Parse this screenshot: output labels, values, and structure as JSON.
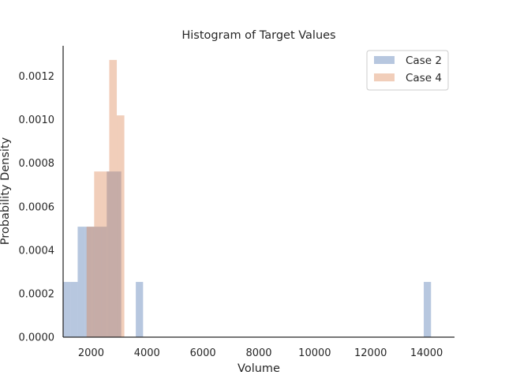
{
  "chart_data": {
    "type": "bar",
    "title": "Histogram of Target Values",
    "xlabel": "Volume",
    "ylabel": "Probability Density",
    "xlim": [
      1000,
      15000
    ],
    "ylim": [
      0,
      0.00134
    ],
    "xticks": [
      2000,
      4000,
      6000,
      8000,
      10000,
      12000,
      14000
    ],
    "yticks": [
      0.0,
      0.0002,
      0.0004,
      0.0006,
      0.0008,
      0.001,
      0.0012
    ],
    "ytick_labels": [
      "0.0000",
      "0.0002",
      "0.0004",
      "0.0006",
      "0.0008",
      "0.0010",
      "0.0012"
    ],
    "grid": false,
    "legend": "top-right",
    "series": [
      {
        "name": "Case 2",
        "color": "#4c72b0",
        "bins": [
          {
            "x0": 1000,
            "x1": 1260,
            "density": 0.000254
          },
          {
            "x0": 1260,
            "x1": 1520,
            "density": 0.000254
          },
          {
            "x0": 1520,
            "x1": 1780,
            "density": 0.000508
          },
          {
            "x0": 1780,
            "x1": 2040,
            "density": 0.000508
          },
          {
            "x0": 2040,
            "x1": 2300,
            "density": 0.000508
          },
          {
            "x0": 2300,
            "x1": 2560,
            "density": 0.000508
          },
          {
            "x0": 2560,
            "x1": 2820,
            "density": 0.000762
          },
          {
            "x0": 2820,
            "x1": 3080,
            "density": 0.000762
          },
          {
            "x0": 3080,
            "x1": 3340,
            "density": 0
          },
          {
            "x0": 3340,
            "x1": 3600,
            "density": 0
          },
          {
            "x0": 3600,
            "x1": 3860,
            "density": 0.000254
          },
          {
            "x0": 13900,
            "x1": 14160,
            "density": 0.000254
          }
        ]
      },
      {
        "name": "Case 4",
        "color": "#dd8452",
        "bins": [
          {
            "x0": 1840,
            "x1": 2110,
            "density": 0.000508
          },
          {
            "x0": 2110,
            "x1": 2380,
            "density": 0.000762
          },
          {
            "x0": 2380,
            "x1": 2650,
            "density": 0.000762
          },
          {
            "x0": 2650,
            "x1": 2920,
            "density": 0.001275
          },
          {
            "x0": 2920,
            "x1": 3190,
            "density": 0.00102
          }
        ]
      }
    ]
  }
}
